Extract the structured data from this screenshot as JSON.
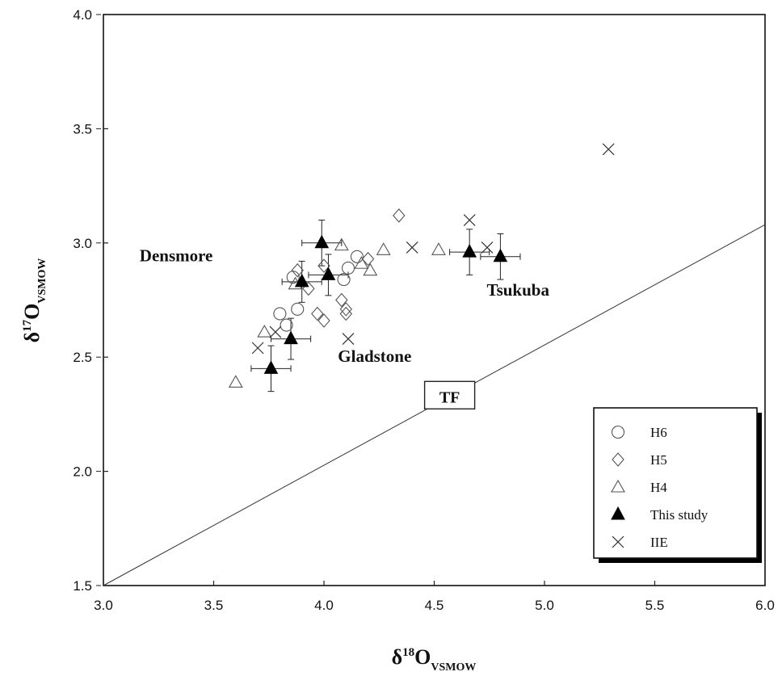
{
  "chart_data": {
    "type": "scatter",
    "xlabel": "δ18OVSMOW",
    "ylabel": "δ17OVSMOW",
    "xlabel_parts": {
      "sym": "δ",
      "sup": "18",
      "main": "O",
      "sub": "VSMOW"
    },
    "ylabel_parts": {
      "sym": "δ",
      "sup": "17",
      "main": "O",
      "sub": "VSMOW"
    },
    "xlim": [
      3.0,
      6.0
    ],
    "ylim": [
      1.5,
      4.0
    ],
    "x_ticks": [
      "3.0",
      "3.5",
      "4.0",
      "4.5",
      "5.0",
      "5.5",
      "6.0"
    ],
    "y_ticks": [
      "1.5",
      "2.0",
      "2.5",
      "3.0",
      "3.5",
      "4.0"
    ],
    "grid": false,
    "legend_position": "lower-right",
    "series": [
      {
        "name": "H6",
        "marker": "circle",
        "points": [
          [
            3.8,
            2.69
          ],
          [
            3.83,
            2.64
          ],
          [
            3.88,
            2.71
          ],
          [
            4.09,
            2.84
          ],
          [
            4.11,
            2.89
          ],
          [
            4.15,
            2.94
          ],
          [
            3.86,
            2.85
          ]
        ]
      },
      {
        "name": "H5",
        "marker": "diamond",
        "points": [
          [
            4.34,
            3.12
          ],
          [
            3.88,
            2.88
          ],
          [
            3.93,
            2.8
          ],
          [
            3.97,
            2.69
          ],
          [
            4.0,
            2.66
          ],
          [
            4.08,
            2.75
          ],
          [
            4.1,
            2.71
          ],
          [
            4.1,
            2.69
          ],
          [
            4.2,
            2.93
          ],
          [
            4.0,
            2.9
          ]
        ]
      },
      {
        "name": "H4",
        "marker": "triangle-open",
        "points": [
          [
            3.6,
            2.39
          ],
          [
            3.73,
            2.61
          ],
          [
            3.87,
            2.82
          ],
          [
            4.08,
            2.99
          ],
          [
            4.17,
            2.91
          ],
          [
            4.21,
            2.88
          ],
          [
            4.27,
            2.97
          ],
          [
            4.52,
            2.97
          ]
        ]
      },
      {
        "name": "This study",
        "marker": "triangle-filled",
        "points": [
          {
            "x": 3.76,
            "y": 2.45,
            "xerr": 0.09,
            "yerr": 0.1
          },
          {
            "x": 3.85,
            "y": 2.58,
            "xerr": 0.09,
            "yerr": 0.09
          },
          {
            "x": 3.9,
            "y": 2.83,
            "xerr": 0.09,
            "yerr": 0.09
          },
          {
            "x": 3.99,
            "y": 3.0,
            "xerr": 0.09,
            "yerr": 0.1
          },
          {
            "x": 4.02,
            "y": 2.86,
            "xerr": 0.09,
            "yerr": 0.09
          },
          {
            "x": 4.66,
            "y": 2.96,
            "xerr": 0.09,
            "yerr": 0.1
          },
          {
            "x": 4.8,
            "y": 2.94,
            "xerr": 0.09,
            "yerr": 0.1
          }
        ]
      },
      {
        "name": "IIE",
        "marker": "cross",
        "points": [
          [
            3.7,
            2.54
          ],
          [
            3.78,
            2.61
          ],
          [
            4.11,
            2.58
          ],
          [
            4.4,
            2.98
          ],
          [
            4.66,
            3.1
          ],
          [
            4.74,
            2.98
          ],
          [
            5.29,
            3.41
          ]
        ]
      }
    ],
    "annotations": [
      {
        "text": "Densmore",
        "x": 3.33,
        "y": 2.92
      },
      {
        "text": "Gladstone",
        "x": 4.23,
        "y": 2.48
      },
      {
        "text": "Tsukuba",
        "x": 4.88,
        "y": 2.77
      }
    ],
    "reference_line": {
      "label": "TF",
      "x1": 3.0,
      "y1": 1.5,
      "x2": 6.0,
      "y2": 3.08,
      "label_at": {
        "x": 4.57,
        "y": 2.33
      }
    }
  }
}
